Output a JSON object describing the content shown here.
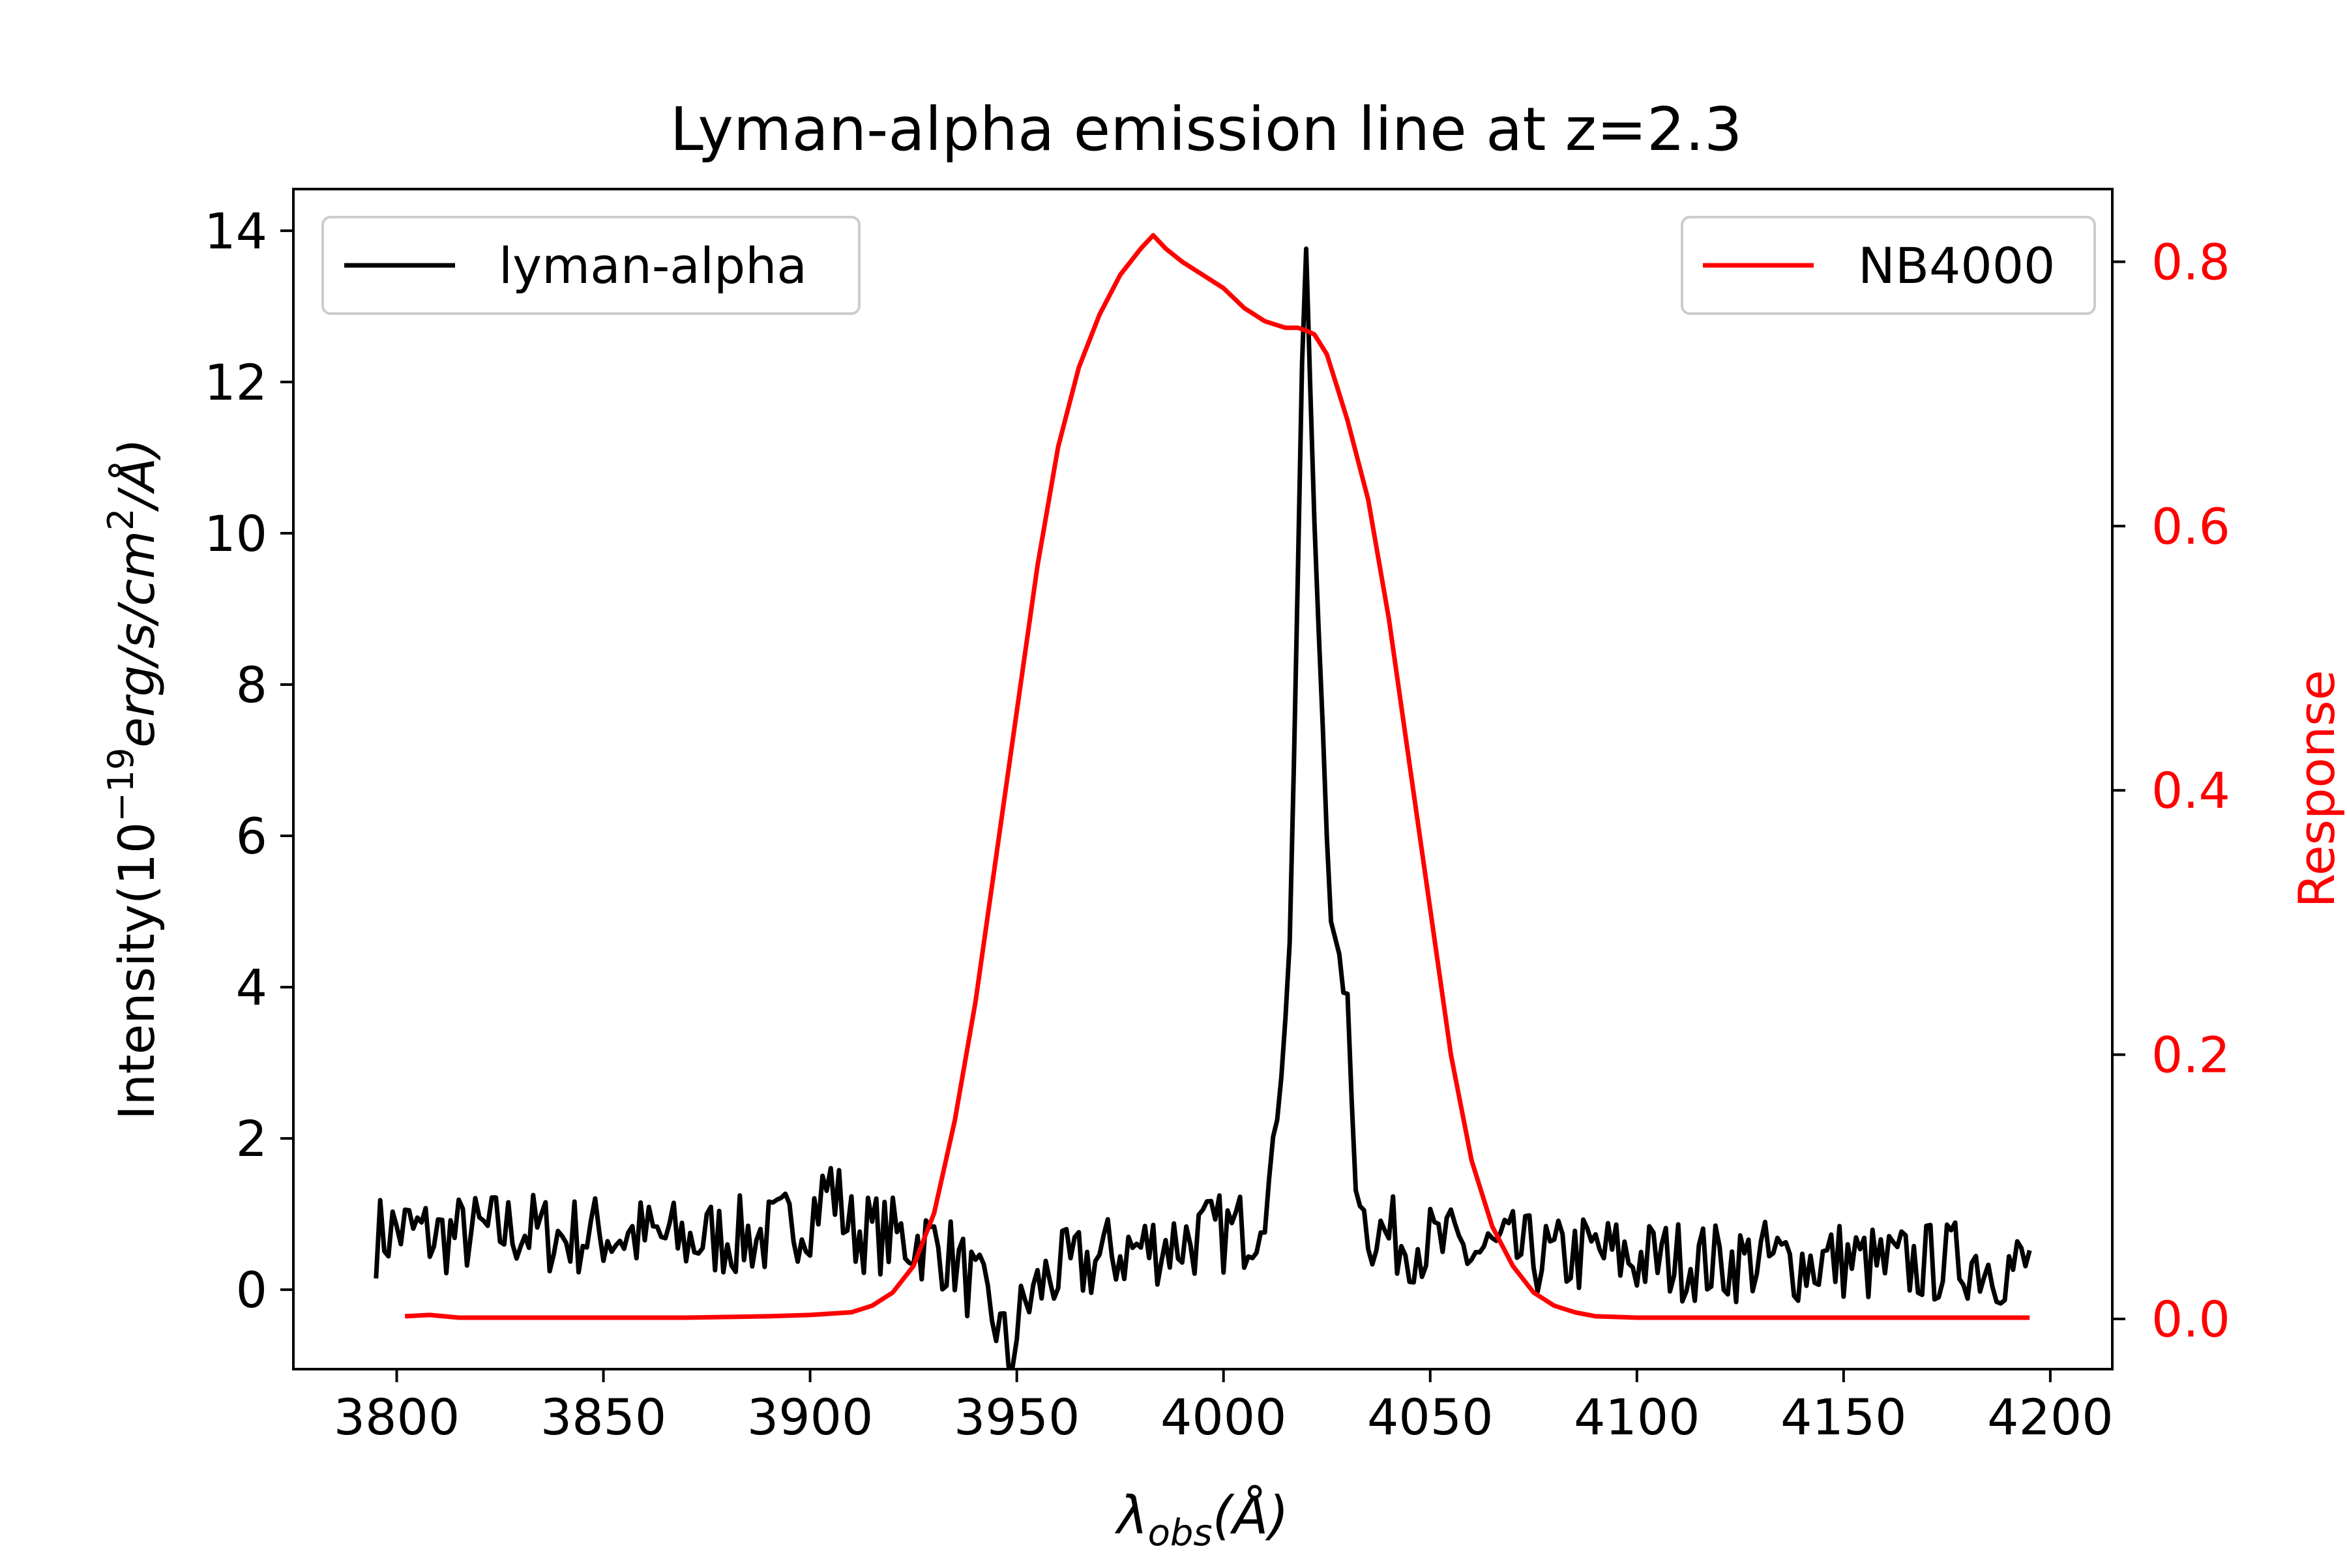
{
  "chart_data": {
    "type": "line",
    "title": "Lyman-alpha emission line at z=2.3",
    "xlabel": {
      "symbol": "λ",
      "subscript": "obs",
      "unit": "(Å)"
    },
    "ylabel": {
      "prefix": "Intensity(10",
      "exponent": "−19",
      "middle": "erg/s/cm",
      "power": "2",
      "suffix": "/Å)"
    },
    "y2label": "Response",
    "xlim": [
      3775,
      4215
    ],
    "ylim": [
      -1.05,
      14.55
    ],
    "y2lim": [
      -0.038,
      0.855
    ],
    "x_ticks": [
      3800,
      3850,
      3900,
      3950,
      4000,
      4050,
      4100,
      4150,
      4200
    ],
    "x_tick_labels": [
      "3800",
      "3850",
      "3900",
      "3950",
      "4000",
      "4050",
      "4100",
      "4150",
      "4200"
    ],
    "y_ticks": [
      0,
      2,
      4,
      6,
      8,
      10,
      12,
      14
    ],
    "y_tick_labels": [
      "0",
      "2",
      "4",
      "6",
      "8",
      "10",
      "12",
      "14"
    ],
    "y2_ticks": [
      0.0,
      0.2,
      0.4,
      0.6,
      0.8
    ],
    "y2_tick_labels": [
      "0.0",
      "0.2",
      "0.4",
      "0.6",
      "0.8"
    ],
    "legends": [
      {
        "label": "lyman-alpha",
        "color": "#000000",
        "placement": "upper-left"
      },
      {
        "label": "NB4000",
        "color": "#ff0000",
        "placement": "upper-right"
      }
    ],
    "series": [
      {
        "name": "lyman-alpha",
        "axis": "left",
        "color": "#000000",
        "x_start": 3795,
        "x_end": 3795,
        "noise_seed": 7,
        "x": [
          3795,
          3800,
          3810,
          3820,
          3830,
          3840,
          3850,
          3860,
          3870,
          3880,
          3890,
          3900,
          3905,
          3910,
          3920,
          3930,
          3935,
          3940,
          3945,
          3948,
          3952,
          3958,
          3965,
          3975,
          3985,
          3995,
          4005,
          4010,
          4012,
          4014,
          4016,
          4018,
          4019,
          4020,
          4021,
          4022,
          4023,
          4024,
          4025,
          4026,
          4027,
          4028,
          4029,
          4030,
          4031,
          4032,
          4034,
          4036,
          4040,
          4050,
          4060,
          4070,
          4080,
          4090,
          4100,
          4110,
          4120,
          4130,
          4140,
          4150,
          4160,
          4170,
          4180,
          4190,
          4195
        ],
        "y": [
          0.7,
          0.8,
          0.7,
          0.75,
          0.8,
          0.7,
          0.75,
          0.7,
          0.65,
          0.7,
          0.7,
          1.0,
          1.4,
          0.8,
          0.7,
          0.6,
          0.4,
          0.0,
          -0.4,
          -0.9,
          -0.2,
          0.2,
          0.3,
          0.5,
          0.6,
          0.7,
          0.8,
          1.0,
          1.8,
          3.0,
          4.5,
          9.5,
          12.0,
          13.8,
          11.8,
          10.0,
          8.8,
          7.5,
          6.2,
          5.0,
          4.5,
          4.2,
          4.1,
          3.7,
          2.5,
          1.5,
          1.0,
          0.8,
          0.7,
          0.6,
          0.5,
          0.5,
          0.4,
          0.5,
          0.4,
          0.4,
          0.35,
          0.4,
          0.35,
          0.4,
          0.3,
          0.35,
          0.4,
          0.3,
          0.3
        ]
      },
      {
        "name": "NB4000",
        "axis": "right",
        "color": "#ff0000",
        "x": [
          3802,
          3808,
          3815,
          3830,
          3850,
          3870,
          3890,
          3900,
          3910,
          3915,
          3920,
          3925,
          3930,
          3935,
          3940,
          3945,
          3950,
          3955,
          3960,
          3965,
          3970,
          3975,
          3980,
          3983,
          3986,
          3990,
          3995,
          4000,
          4005,
          4010,
          4015,
          4018,
          4020,
          4022,
          4025,
          4028,
          4030,
          4035,
          4040,
          4045,
          4050,
          4055,
          4060,
          4065,
          4070,
          4075,
          4080,
          4085,
          4090,
          4100,
          4120,
          4140,
          4160,
          4180,
          4195
        ],
        "y": [
          0.002,
          0.003,
          0.001,
          0.001,
          0.001,
          0.001,
          0.002,
          0.003,
          0.005,
          0.01,
          0.02,
          0.04,
          0.08,
          0.15,
          0.24,
          0.35,
          0.46,
          0.57,
          0.66,
          0.72,
          0.76,
          0.79,
          0.81,
          0.82,
          0.81,
          0.8,
          0.79,
          0.78,
          0.765,
          0.755,
          0.75,
          0.75,
          0.748,
          0.745,
          0.73,
          0.7,
          0.68,
          0.62,
          0.53,
          0.42,
          0.31,
          0.2,
          0.12,
          0.07,
          0.04,
          0.02,
          0.01,
          0.005,
          0.002,
          0.001,
          0.001,
          0.001,
          0.001,
          0.001,
          0.001
        ]
      }
    ]
  },
  "noise_amplitude": 0.55,
  "noise_step": 1.0
}
